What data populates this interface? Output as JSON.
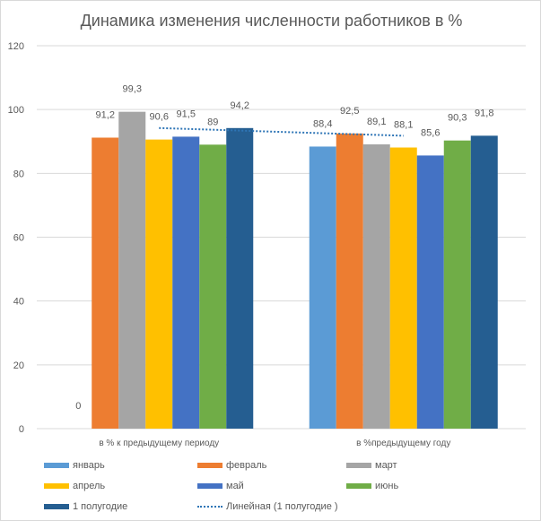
{
  "chart_data": {
    "type": "bar",
    "title": "Динамика изменения численности работников   в %",
    "categories": [
      "в % к предыдущему периоду",
      "в %предыдущему году"
    ],
    "ylim": [
      0,
      120
    ],
    "yticks": [
      0,
      20,
      40,
      60,
      80,
      100,
      120
    ],
    "grid": true,
    "legend_position": "bottom",
    "series": [
      {
        "name": "январь",
        "color": "#5b9bd5",
        "values": [
          0,
          88.4
        ],
        "labels": [
          "0",
          "88,4"
        ]
      },
      {
        "name": "февраль",
        "color": "#ed7d31",
        "values": [
          91.2,
          92.5
        ],
        "labels": [
          "91,2",
          "92,5"
        ]
      },
      {
        "name": "март",
        "color": "#a5a5a5",
        "values": [
          99.3,
          89.1
        ],
        "labels": [
          "99,3",
          "89,1"
        ]
      },
      {
        "name": "апрель",
        "color": "#ffc000",
        "values": [
          90.6,
          88.1
        ],
        "labels": [
          "90,6",
          "88,1"
        ]
      },
      {
        "name": "май",
        "color": "#4472c4",
        "values": [
          91.5,
          85.6
        ],
        "labels": [
          "91,5",
          "85,6"
        ]
      },
      {
        "name": "июнь",
        "color": "#70ad47",
        "values": [
          89,
          90.3
        ],
        "labels": [
          "89",
          "90,3"
        ]
      },
      {
        "name": "1 полугодие",
        "color": "#255e91",
        "values": [
          94.2,
          91.8
        ],
        "labels": [
          "94,2",
          "91,8"
        ]
      }
    ],
    "trendline": {
      "name": "Линейная (1 полугодие )",
      "series": "1 полугодие",
      "type": "linear",
      "color": "#2e75b6"
    }
  }
}
